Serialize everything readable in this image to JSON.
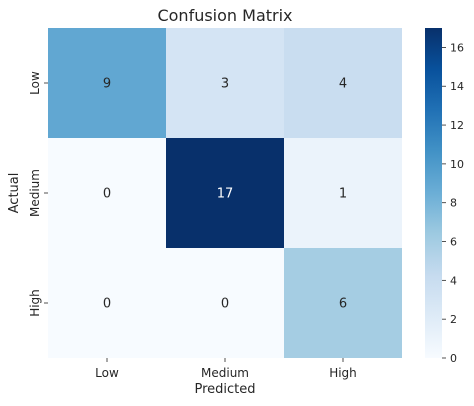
{
  "chart_data": {
    "type": "heatmap",
    "title": "Confusion Matrix",
    "xlabel": "Predicted",
    "ylabel": "Actual",
    "x_categories": [
      "Low",
      "Medium",
      "High"
    ],
    "y_categories": [
      "Low",
      "Medium",
      "High"
    ],
    "values": [
      [
        9,
        3,
        4
      ],
      [
        0,
        17,
        1
      ],
      [
        0,
        0,
        6
      ]
    ],
    "colormap": "Blues",
    "colorbar": {
      "range": [
        0,
        17
      ],
      "ticks": [
        "0",
        "2",
        "4",
        "6",
        "8",
        "10",
        "12",
        "14",
        "16"
      ],
      "tick_values": [
        0,
        2,
        4,
        6,
        8,
        10,
        12,
        14,
        16
      ]
    },
    "annotations": true,
    "grid": false
  }
}
